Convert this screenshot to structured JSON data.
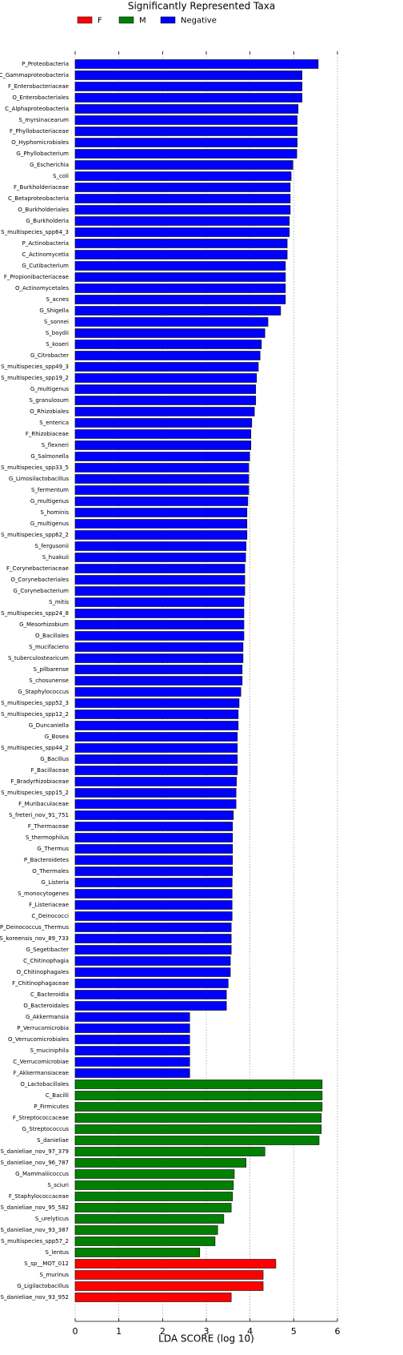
{
  "chart_data": {
    "type": "barh",
    "title": "Significantly Represented Taxa",
    "x_label": "LDA SCORE (log 10)",
    "xlim": [
      0,
      6
    ],
    "xticks": [
      0,
      1,
      2,
      3,
      4,
      5,
      6
    ],
    "grid": true,
    "legend": "top",
    "categories": [
      "P_Proteobacteria",
      "C_Gammaproteobacteria",
      "F_Enterobacteriaceae",
      "O_Enterobacteriales",
      "C_Alphaproteobacteria",
      "S_myrsinacearum",
      "F_Phyllobacteriaceae",
      "O_Hyphomicrobiales",
      "G_Phyllobacterium",
      "G_Escherichia",
      "S_coli",
      "F_Burkholderiaceae",
      "C_Betaproteobacteria",
      "O_Burkholderiales",
      "G_Burkholderia",
      "S_multispecies_spp64_3",
      "P_Actinobacteria",
      "C_Actinomycetia",
      "G_Cutibacterium",
      "F_Propionibacteriaceae",
      "O_Actinomycetales",
      "S_acnes",
      "G_Shigella",
      "S_sonnei",
      "S_boydii",
      "S_koseri",
      "G_Citrobacter",
      "S_multispecies_spp49_3",
      "S_multispecies_spp19_2",
      "G_multigenus",
      "S_granulosum",
      "O_Rhizobiales",
      "S_enterica",
      "F_Rhizobiaceae",
      "S_flexneri",
      "G_Salmonella",
      "S_multispecies_spp33_5",
      "G_Limosilactobacillus",
      "S_fermentum",
      "G_multigenus",
      "S_hominis",
      "G_multigenus",
      "S_multispecies_spp62_2",
      "S_fergusonii",
      "S_huakuii",
      "F_Corynebacteriaceae",
      "O_Corynebacteriales",
      "G_Corynebacterium",
      "S_mitis",
      "S_multispecies_spp24_8",
      "G_Mesorhizobium",
      "O_Bacillales",
      "S_mucifaciens",
      "S_tuberculostearicum",
      "S_pilbarense",
      "S_chosunense",
      "G_Staphylococcus",
      "S_multispecies_spp52_3",
      "S_multispecies_spp12_2",
      "G_Duncaniella",
      "G_Bosea",
      "S_multispecies_spp44_2",
      "G_Bacillus",
      "F_Bacillaceae",
      "F_Bradyrhizobiaceae",
      "S_multispecies_spp15_2",
      "F_Muribaculaceae",
      "S_freteri_nov_91_751",
      "F_Thermaceae",
      "S_thermophilus",
      "G_Thermus",
      "P_Bacteroidetes",
      "O_Thermales",
      "G_Listeria",
      "S_monocytogenes",
      "F_Listeriaceae",
      "C_Deinococci",
      "P_Deinococcus_Thermus",
      "S_koreensis_nov_89_733",
      "G_Segetibacter",
      "C_Chitinophagia",
      "O_Chitinophagales",
      "F_Chitinophagaceae",
      "C_Bacteroidia",
      "O_Bacteroidales",
      "G_Akkermansia",
      "P_Verrucomicrobia",
      "O_Verrucomicrobiales",
      "S_muciniphila",
      "C_Verrucomicrobiae",
      "F_Akkermansiaceae",
      "O_Lactobacillales",
      "C_Bacilli",
      "P_Firmicutes",
      "F_Streptococcaceae",
      "G_Streptococcus",
      "S_danieliae",
      "S_danieliae_nov_97_379",
      "S_danieliae_nov_96_787",
      "G_Mammaliicoccus",
      "S_sciuri",
      "F_Staphylococcaceae",
      "S_danieliae_nov_95_582",
      "S_urelyticus",
      "S_danieliae_nov_93_387",
      "S_multispecies_spp57_2",
      "S_lentus",
      "S_sp__MOT_012",
      "S_murinus",
      "G_Ligilactobacillus",
      "S_danieliae_nov_93_952"
    ],
    "series": [
      {
        "name": "F",
        "color": "#ff0000",
        "values": [
          null,
          null,
          null,
          null,
          null,
          null,
          null,
          null,
          null,
          null,
          null,
          null,
          null,
          null,
          null,
          null,
          null,
          null,
          null,
          null,
          null,
          null,
          null,
          null,
          null,
          null,
          null,
          null,
          null,
          null,
          null,
          null,
          null,
          null,
          null,
          null,
          null,
          null,
          null,
          null,
          null,
          null,
          null,
          null,
          null,
          null,
          null,
          null,
          null,
          null,
          null,
          null,
          null,
          null,
          null,
          null,
          null,
          null,
          null,
          null,
          null,
          null,
          null,
          null,
          null,
          null,
          null,
          null,
          null,
          null,
          null,
          null,
          null,
          null,
          null,
          null,
          null,
          null,
          null,
          null,
          null,
          null,
          null,
          null,
          null,
          null,
          null,
          null,
          null,
          null,
          null,
          null,
          null,
          null,
          null,
          null,
          null,
          null,
          null,
          null,
          null,
          null,
          null,
          null,
          null,
          null,
          null,
          4.59,
          4.3,
          4.3,
          3.57
        ]
      },
      {
        "name": "M",
        "color": "#008000",
        "values": [
          null,
          null,
          null,
          null,
          null,
          null,
          null,
          null,
          null,
          null,
          null,
          null,
          null,
          null,
          null,
          null,
          null,
          null,
          null,
          null,
          null,
          null,
          null,
          null,
          null,
          null,
          null,
          null,
          null,
          null,
          null,
          null,
          null,
          null,
          null,
          null,
          null,
          null,
          null,
          null,
          null,
          null,
          null,
          null,
          null,
          null,
          null,
          null,
          null,
          null,
          null,
          null,
          null,
          null,
          null,
          null,
          null,
          null,
          null,
          null,
          null,
          null,
          null,
          null,
          null,
          null,
          null,
          null,
          null,
          null,
          null,
          null,
          null,
          null,
          null,
          null,
          null,
          null,
          null,
          null,
          null,
          null,
          null,
          null,
          null,
          null,
          null,
          null,
          null,
          null,
          null,
          5.65,
          5.65,
          5.65,
          5.63,
          5.63,
          5.58,
          4.34,
          3.91,
          3.64,
          3.62,
          3.6,
          3.57,
          3.4,
          3.26,
          3.2,
          2.85,
          null,
          null,
          null,
          null
        ]
      },
      {
        "name": "Negative",
        "color": "#0000ff",
        "values": [
          5.56,
          5.19,
          5.19,
          5.19,
          5.1,
          5.08,
          5.08,
          5.08,
          5.07,
          4.98,
          4.94,
          4.92,
          4.92,
          4.92,
          4.9,
          4.9,
          4.85,
          4.85,
          4.81,
          4.81,
          4.81,
          4.81,
          4.7,
          4.41,
          4.34,
          4.26,
          4.23,
          4.19,
          4.15,
          4.13,
          4.13,
          4.1,
          4.04,
          4.02,
          4.02,
          3.99,
          3.97,
          3.97,
          3.97,
          3.95,
          3.93,
          3.93,
          3.93,
          3.91,
          3.9,
          3.88,
          3.88,
          3.88,
          3.86,
          3.86,
          3.86,
          3.86,
          3.84,
          3.84,
          3.82,
          3.82,
          3.79,
          3.75,
          3.73,
          3.73,
          3.71,
          3.71,
          3.71,
          3.71,
          3.69,
          3.68,
          3.68,
          3.62,
          3.6,
          3.6,
          3.6,
          3.6,
          3.6,
          3.59,
          3.59,
          3.59,
          3.59,
          3.57,
          3.57,
          3.57,
          3.55,
          3.55,
          3.5,
          3.46,
          3.46,
          2.62,
          2.62,
          2.62,
          2.62,
          2.62,
          2.62,
          null,
          null,
          null,
          null,
          null,
          null,
          null,
          null,
          null,
          null,
          null,
          null,
          null,
          null,
          null,
          null,
          null,
          null,
          null,
          null
        ]
      }
    ]
  }
}
